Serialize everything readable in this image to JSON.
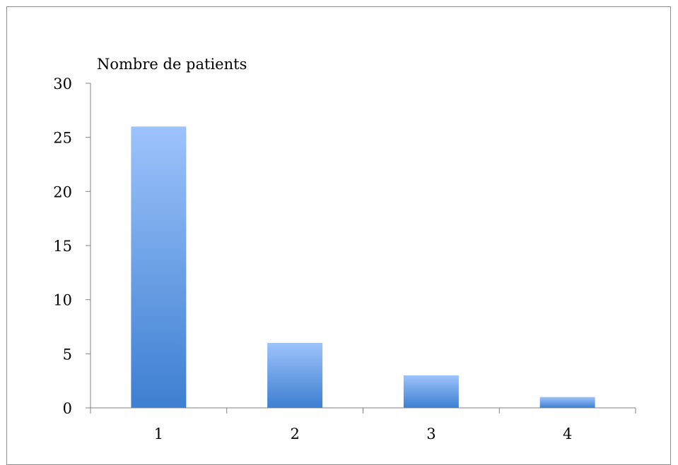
{
  "chart_data": {
    "type": "bar",
    "title": "",
    "xlabel": "",
    "ylabel": "Nombre de patients",
    "categories": [
      "1",
      "2",
      "3",
      "4"
    ],
    "values": [
      26,
      6,
      3,
      1
    ],
    "ylim": [
      0,
      30
    ],
    "yticks": [
      0,
      5,
      10,
      15,
      20,
      25,
      30
    ],
    "grid": false,
    "legend": "none",
    "bar_color_top": "#9dc3fb",
    "bar_color_bottom": "#3d7fd1",
    "axis_color": "#808080"
  }
}
